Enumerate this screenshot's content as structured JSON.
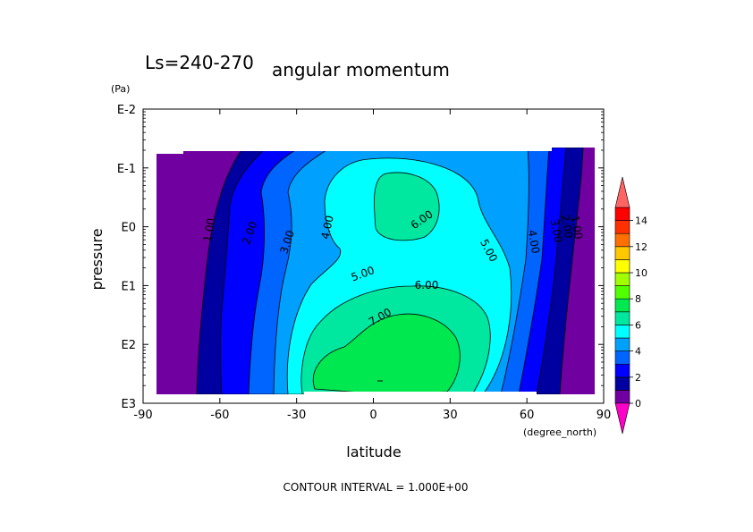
{
  "chart_data": {
    "type": "heatmap",
    "title": "angular momentum",
    "subtitle": "Ls=240-270",
    "xlabel": "latitude",
    "xunit": "(degree_north)",
    "ylabel": "pressure",
    "yunit": "(Pa)",
    "xlim": [
      -90,
      90
    ],
    "y_scale": "log",
    "ylim": [
      "E3",
      "E-2"
    ],
    "x_ticks": [
      "-90",
      "-60",
      "-30",
      "0",
      "30",
      "60",
      "90"
    ],
    "y_ticks": [
      "E-2",
      "E-1",
      "E0",
      "E1",
      "E2",
      "E3"
    ],
    "contour_interval_text": "CONTOUR INTERVAL = 1.000E+00",
    "contour_labels": [
      "1.00",
      "2.00",
      "3.00",
      "4.00",
      "5.00",
      "6.00",
      "7.00",
      "6.00",
      "5.00",
      "4.00",
      "3.00",
      "2.00",
      "1.00"
    ],
    "colorbar": {
      "ticks": [
        "0",
        "2",
        "4",
        "6",
        "8",
        "10",
        "12",
        "14"
      ],
      "levels": [
        0,
        1,
        2,
        3,
        4,
        5,
        6,
        7,
        8,
        9,
        10,
        11,
        12,
        13,
        14,
        15
      ],
      "colors": [
        "#7000a0",
        "#0000a0",
        "#0000ff",
        "#0064ff",
        "#00a0ff",
        "#00ffff",
        "#00e8a0",
        "#00e850",
        "#50ff00",
        "#a0ff00",
        "#ffff00",
        "#ffc800",
        "#ff7000",
        "#ff3000",
        "#ff0000",
        "#ff6060"
      ],
      "under_color": "#ff00c8",
      "over_color": "#ff6464"
    }
  }
}
